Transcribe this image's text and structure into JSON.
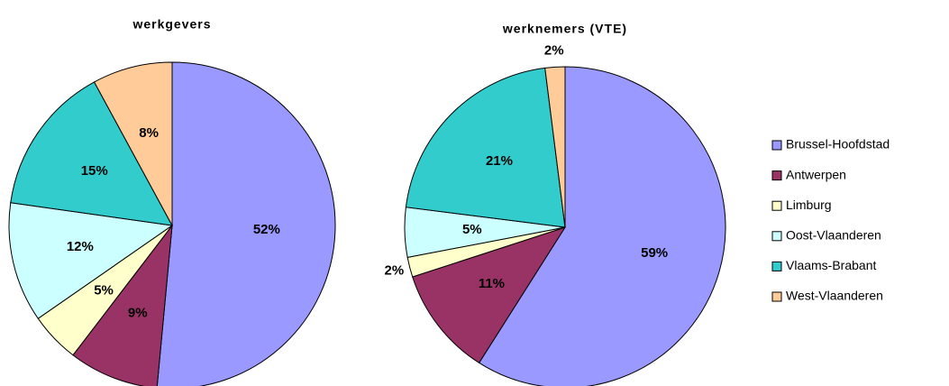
{
  "legend": {
    "categories": [
      "Brussel-Hoofdstad",
      "Antwerpen",
      "Limburg",
      "Oost-Vlaanderen",
      "Vlaams-Brabant",
      "West-Vlaanderen"
    ],
    "colors": [
      "#9999ff",
      "#993366",
      "#ffffcc",
      "#ccffff",
      "#33cccc",
      "#ffcc99"
    ]
  },
  "chart_data": [
    {
      "type": "pie",
      "title": "werkgevers",
      "values": [
        52,
        9,
        5,
        12,
        15,
        8
      ]
    },
    {
      "type": "pie",
      "title": "werknemers (VTE)",
      "values": [
        59,
        11,
        2,
        5,
        21,
        2
      ]
    }
  ]
}
